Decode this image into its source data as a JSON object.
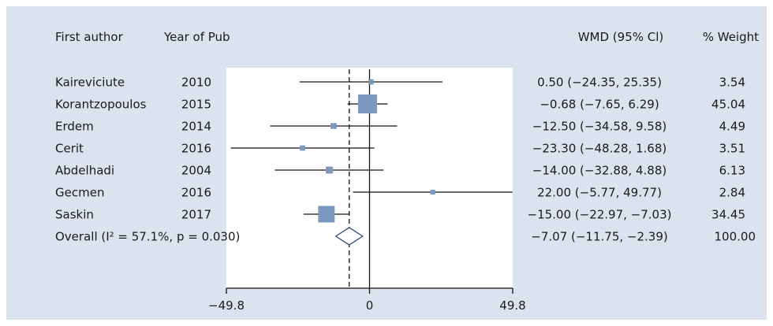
{
  "chart_data": {
    "type": "forest",
    "columns": {
      "author": "First author",
      "year": "Year of Pub",
      "estimate": "WMD (95% Cl)",
      "weight": "% Weight"
    },
    "studies": [
      {
        "author": "Kaireviciute",
        "year": "2010",
        "wmd": 0.5,
        "lo": -24.35,
        "hi": 25.35,
        "ci_text": "0.50 (−24.35, 25.35)",
        "weight": "3.54",
        "weight_value": 3.54
      },
      {
        "author": "Korantzopoulos",
        "year": "2015",
        "wmd": -0.68,
        "lo": -7.65,
        "hi": 6.29,
        "ci_text": "−0.68 (−7.65, 6.29)",
        "weight": "45.04",
        "weight_value": 45.04
      },
      {
        "author": "Erdem",
        "year": "2014",
        "wmd": -12.5,
        "lo": -34.58,
        "hi": 9.58,
        "ci_text": "−12.50 (−34.58, 9.58)",
        "weight": "4.49",
        "weight_value": 4.49
      },
      {
        "author": "Cerit",
        "year": "2016",
        "wmd": -23.3,
        "lo": -48.28,
        "hi": 1.68,
        "ci_text": "−23.30 (−48.28, 1.68)",
        "weight": "3.51",
        "weight_value": 3.51
      },
      {
        "author": "Abdelhadi",
        "year": "2004",
        "wmd": -14.0,
        "lo": -32.88,
        "hi": 4.88,
        "ci_text": "−14.00 (−32.88, 4.88)",
        "weight": "6.13",
        "weight_value": 6.13
      },
      {
        "author": "Gecmen",
        "year": "2016",
        "wmd": 22.0,
        "lo": -5.77,
        "hi": 49.77,
        "ci_text": "22.00 (−5.77, 49.77)",
        "weight": "2.84",
        "weight_value": 2.84
      },
      {
        "author": "Saskin",
        "year": "2017",
        "wmd": -15.0,
        "lo": -22.97,
        "hi": -7.03,
        "ci_text": "−15.00 (−22.97, −7.03)",
        "weight": "34.45",
        "weight_value": 34.45
      }
    ],
    "overall": {
      "label": "Overall (I² = 57.1%, p = 0.030)",
      "wmd": -7.07,
      "lo": -11.75,
      "hi": -2.39,
      "ci_text": "−7.07 (−11.75, −2.39)",
      "weight": "100.00"
    },
    "xlim": [
      -49.8,
      49.8
    ],
    "ticks": [
      -49.8,
      0,
      49.8
    ],
    "tick_labels": [
      "−49.8",
      "0",
      "49.8"
    ],
    "null_line": 0,
    "colors": {
      "background": "#dbe3ee",
      "plot_area": "#ffffff",
      "marker": "#7c98be",
      "line": "#111111",
      "text": "#1a1a1a"
    }
  }
}
